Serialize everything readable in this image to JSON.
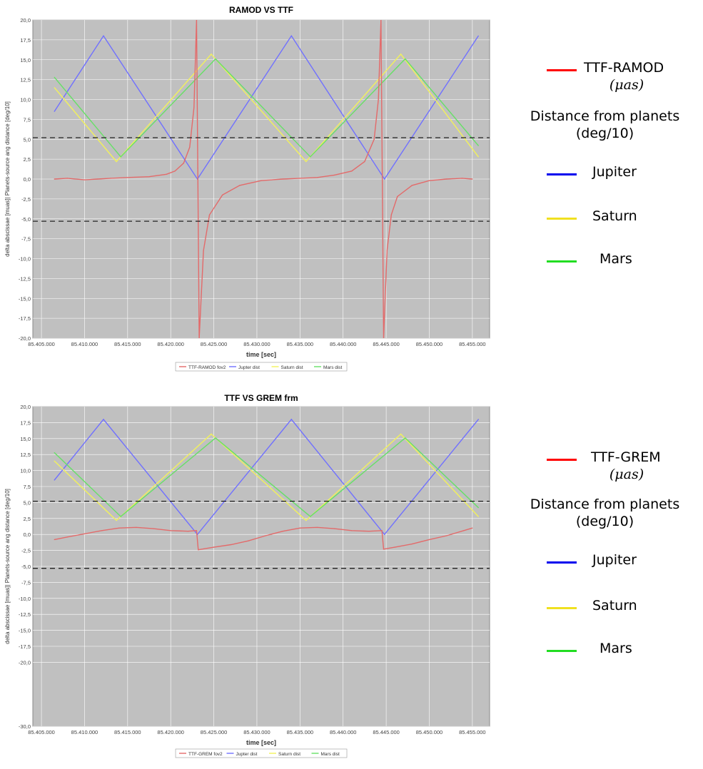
{
  "chart_data": [
    {
      "type": "line",
      "title": "RAMOD VS TTF",
      "xlabel": "time [sec]",
      "ylabel": "delta abscissae [muas]| Planets-source ang distance [deg/10]",
      "xlim": [
        85404000,
        85457000
      ],
      "ylim": [
        -20,
        20
      ],
      "x_ticks": [
        "85.405.000",
        "85.410.000",
        "85.415.000",
        "85.420.000",
        "85.425.000",
        "85.430.000",
        "85.435.000",
        "85.440.000",
        "85.445.000",
        "85.450.000",
        "85.455.000"
      ],
      "y_ticks": [
        "20,0",
        "17,5",
        "15,0",
        "12,5",
        "10,0",
        "7,5",
        "5,0",
        "2,5",
        "0,0",
        "-2,5",
        "-5,0",
        "-7,5",
        "-10,0",
        "-12,5",
        "-15,0",
        "-17,5",
        "-20,0"
      ],
      "grid": true,
      "reference_lines": [
        5.2,
        -5.3
      ],
      "legend_position": "bottom",
      "legend": [
        "TTF-RAMOD fov2",
        "Jupter dist",
        "Saturn dist",
        "Mars dist"
      ],
      "series": [
        {
          "name": "Jupter dist",
          "color": "#7070ff",
          "x": [
            85406500,
            85412200,
            85423100,
            85434000,
            85444800,
            85455700
          ],
          "y": [
            8.5,
            18.0,
            0.0,
            18.0,
            0.0,
            18.0
          ]
        },
        {
          "name": "Saturn dist",
          "color": "#f2f25a",
          "x": [
            85406500,
            85413700,
            85424700,
            85435700,
            85446700,
            85455700
          ],
          "y": [
            11.5,
            2.2,
            15.7,
            2.2,
            15.7,
            2.8
          ]
        },
        {
          "name": "Mars dist",
          "color": "#66e066",
          "x": [
            85406500,
            85414200,
            85425200,
            85436200,
            85447200,
            85455700
          ],
          "y": [
            12.8,
            2.8,
            15.1,
            2.8,
            15.1,
            4.2
          ]
        },
        {
          "name": "TTF-RAMOD fov2",
          "color": "#e36a6a",
          "x": [
            85406500,
            85408000,
            85410000,
            85411500,
            85413000,
            85415000,
            85417500,
            85419500,
            85420500,
            85421500,
            85422200,
            85422700,
            85423000,
            85423300,
            85423800,
            85424500,
            85426000,
            85428000,
            85430500,
            85433000,
            85435000,
            85437000,
            85439000,
            85441000,
            85442500,
            85443600,
            85444100,
            85444400,
            85444700,
            85445100,
            85445600,
            85446300,
            85448000,
            85450000,
            85452000,
            85453800,
            85455000
          ],
          "y": [
            0.0,
            0.1,
            -0.1,
            0.0,
            0.1,
            0.2,
            0.3,
            0.6,
            1.0,
            2.0,
            4.0,
            9.0,
            20.0,
            -20.0,
            -9.0,
            -4.5,
            -2.0,
            -0.8,
            -0.2,
            0.0,
            0.1,
            0.2,
            0.5,
            1.0,
            2.2,
            5.0,
            10.0,
            20.0,
            -20.0,
            -9.0,
            -4.5,
            -2.2,
            -0.8,
            -0.2,
            0.0,
            0.1,
            0.0
          ]
        }
      ]
    },
    {
      "type": "line",
      "title": "TTF VS GREM frm",
      "xlabel": "time [sec]",
      "ylabel": "delta abscissae [muas]| Planets-source ang distance [deg/10]",
      "xlim": [
        85404000,
        85457000
      ],
      "ylim": [
        -30,
        20
      ],
      "x_ticks": [
        "85.405.000",
        "85.410.000",
        "85.415.000",
        "85.420.000",
        "85.425.000",
        "85.430.000",
        "85.435.000",
        "85.440.000",
        "85.445.000",
        "85.450.000",
        "85.455.000"
      ],
      "y_ticks": [
        "20,0",
        "17,5",
        "15,0",
        "12,5",
        "10,0",
        "7,5",
        "5,0",
        "2,5",
        "0,0",
        "-2,5",
        "-5,0",
        "-7,5",
        "-10,0",
        "-12,5",
        "-15,0",
        "-17,5",
        "-20,0",
        "-30,0"
      ],
      "grid": true,
      "reference_lines": [
        5.2,
        -5.3
      ],
      "legend_position": "bottom",
      "legend": [
        "TTF-GREM fov2",
        "Jupter dist",
        "Saturn dist",
        "Mars dist"
      ],
      "series": [
        {
          "name": "Jupter dist",
          "color": "#7070ff",
          "x": [
            85406500,
            85412200,
            85423100,
            85434000,
            85444800,
            85455700
          ],
          "y": [
            8.5,
            18.0,
            0.0,
            18.0,
            0.0,
            18.0
          ]
        },
        {
          "name": "Saturn dist",
          "color": "#f2f25a",
          "x": [
            85406500,
            85413700,
            85424700,
            85435700,
            85446700,
            85455700
          ],
          "y": [
            11.5,
            2.2,
            15.7,
            2.2,
            15.7,
            2.8
          ]
        },
        {
          "name": "Mars dist",
          "color": "#66e066",
          "x": [
            85406500,
            85414200,
            85425200,
            85436200,
            85447200,
            85455700
          ],
          "y": [
            12.8,
            2.8,
            15.1,
            2.8,
            15.1,
            4.2
          ]
        },
        {
          "name": "TTF-GREM fov2",
          "color": "#e36a6a",
          "x": [
            85406500,
            85408000,
            85410000,
            85412000,
            85414000,
            85416000,
            85418000,
            85420000,
            85422000,
            85423000,
            85423200,
            85425000,
            85427000,
            85429000,
            85431000,
            85433000,
            85435000,
            85437000,
            85439000,
            85441000,
            85443000,
            85444500,
            85444700,
            85446000,
            85448000,
            85450000,
            85452000,
            85454000,
            85455000
          ],
          "y": [
            -0.8,
            -0.4,
            0.1,
            0.6,
            1.0,
            1.1,
            0.9,
            0.6,
            0.5,
            0.6,
            -2.4,
            -2.0,
            -1.6,
            -1.0,
            -0.2,
            0.5,
            1.0,
            1.1,
            0.9,
            0.6,
            0.5,
            0.6,
            -2.3,
            -2.0,
            -1.5,
            -0.8,
            -0.2,
            0.6,
            1.0
          ]
        }
      ]
    }
  ],
  "side_legend_top": {
    "items": [
      {
        "label": "TTF-RAMOD",
        "color": "#ff0000"
      },
      {
        "label": "Jupiter",
        "color": "#0000ee"
      },
      {
        "label": "Saturn",
        "color": "#f0e020"
      },
      {
        "label": "Mars",
        "color": "#22dd22"
      }
    ],
    "unit": "(μas)",
    "distance_heading": "Distance from planets",
    "distance_unit": "(deg/10)"
  },
  "side_legend_bottom": {
    "items": [
      {
        "label": "TTF-GREM",
        "color": "#ff0000"
      },
      {
        "label": "Jupiter",
        "color": "#0000ee"
      },
      {
        "label": "Saturn",
        "color": "#f0e020"
      },
      {
        "label": "Mars",
        "color": "#22dd22"
      }
    ],
    "unit": "(μas)",
    "distance_heading": "Distance from planets",
    "distance_unit": "(deg/10)"
  }
}
